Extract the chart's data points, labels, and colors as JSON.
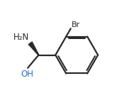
{
  "background_color": "#ffffff",
  "line_color": "#2a2a2a",
  "text_color": "#2a2a2a",
  "figsize": [
    1.75,
    1.55
  ],
  "dpi": 100,
  "br_label": "Br",
  "nh2_label": "H₂N",
  "oh_label": "OH",
  "line_width": 1.6
}
